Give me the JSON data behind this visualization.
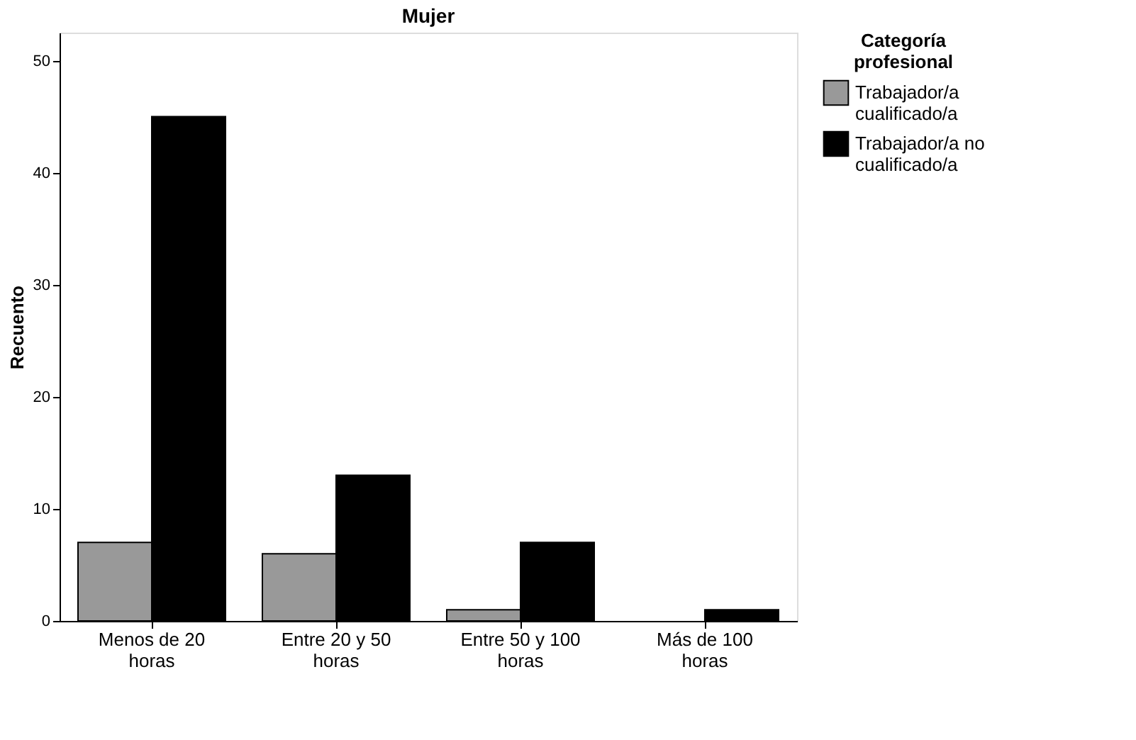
{
  "chart_data": {
    "type": "bar",
    "title": "Mujer",
    "ylabel": "Recuento",
    "legend_title": "Categoría profesional",
    "categories": [
      "Menos de 20 horas",
      "Entre 20 y 50 horas",
      "Entre 50 y 100 horas",
      "Más de 100 horas"
    ],
    "series": [
      {
        "name": "Trabajador/a cualificado/a",
        "color": "#999999",
        "values": [
          7,
          6,
          1,
          null
        ]
      },
      {
        "name": "Trabajador/a no cualificado/a",
        "color": "#000000",
        "values": [
          45,
          13,
          7,
          1
        ]
      }
    ],
    "ylim": [
      0,
      52.5
    ],
    "yticks": [
      0,
      10,
      20,
      30,
      40,
      50
    ],
    "grid": false,
    "legend": "right"
  }
}
